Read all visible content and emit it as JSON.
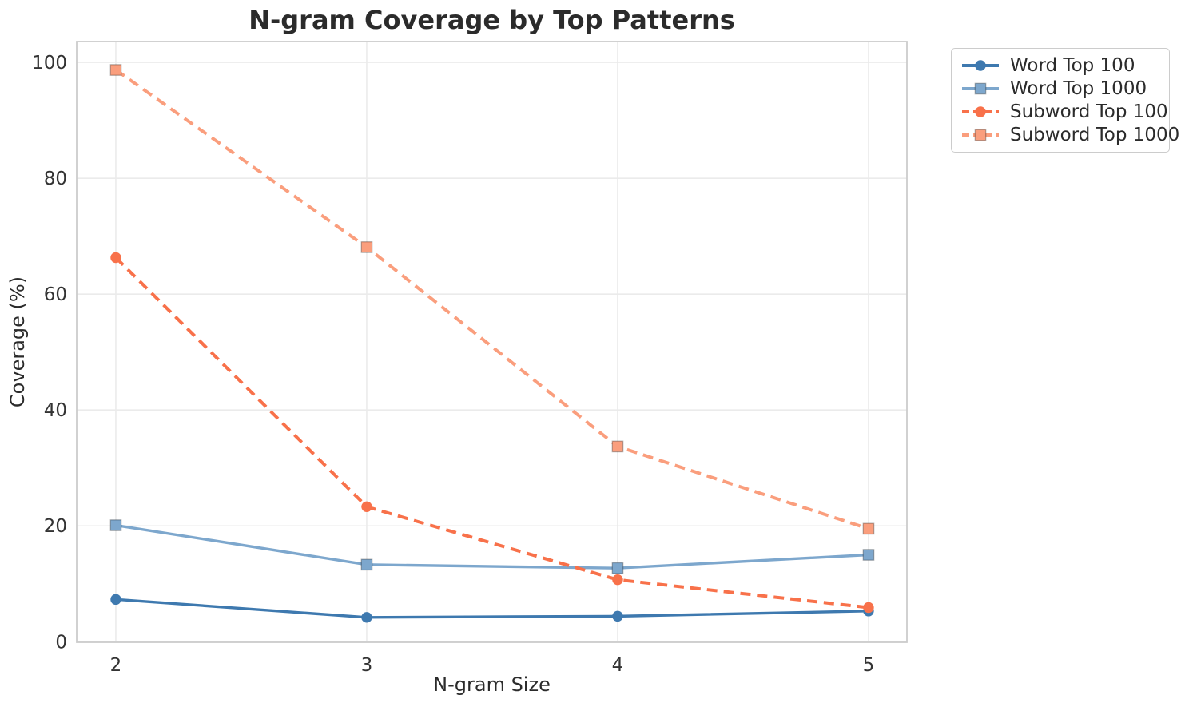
{
  "chart_data": {
    "type": "line",
    "title": "N-gram Coverage by Top Patterns",
    "xlabel": "N-gram Size",
    "ylabel": "Coverage (%)",
    "x": [
      2,
      3,
      4,
      5
    ],
    "xtick_labels": [
      "2",
      "3",
      "4",
      "5"
    ],
    "ytick_values": [
      0,
      20,
      40,
      60,
      80,
      100
    ],
    "ytick_labels": [
      "0",
      "20",
      "40",
      "60",
      "80",
      "100"
    ],
    "xlim": [
      1.844,
      5.153
    ],
    "ylim": [
      -0.1,
      103.6
    ],
    "grid": true,
    "legend_position": "outside-upper-right",
    "series": [
      {
        "name": "Word Top 100",
        "values": [
          7.3,
          4.2,
          4.4,
          5.3
        ],
        "color": "#3e79af",
        "marker": "circle",
        "line": "solid"
      },
      {
        "name": "Word Top 1000",
        "values": [
          20.1,
          13.3,
          12.7,
          15.0
        ],
        "color": "#7da7cd",
        "marker": "square",
        "line": "solid"
      },
      {
        "name": "Subword Top 100",
        "values": [
          66.3,
          23.3,
          10.7,
          5.9
        ],
        "color": "#f8714a",
        "marker": "circle",
        "line": "dashed"
      },
      {
        "name": "Subword Top 1000",
        "values": [
          98.7,
          68.1,
          33.7,
          19.5
        ],
        "color": "#fa9e7d",
        "marker": "square",
        "line": "dashed"
      }
    ]
  }
}
